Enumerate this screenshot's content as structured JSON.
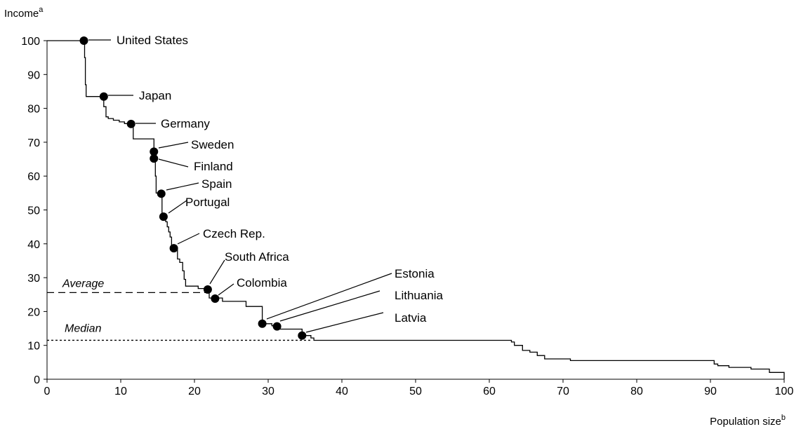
{
  "chart_data": {
    "type": "line",
    "title": "",
    "ylabel": "Income",
    "ylabel_sup": "a",
    "xlabel": "Population size",
    "xlabel_sup": "b",
    "xlim": [
      0,
      100
    ],
    "ylim": [
      0,
      100
    ],
    "xticks": [
      0,
      10,
      20,
      30,
      40,
      50,
      60,
      70,
      80,
      90,
      100
    ],
    "yticks": [
      0,
      10,
      20,
      30,
      40,
      50,
      60,
      70,
      80,
      90,
      100
    ],
    "grid": false,
    "series": [
      {
        "step": [
          [
            0,
            100
          ],
          [
            5.1,
            100
          ],
          [
            5.1,
            95
          ],
          [
            5.2,
            95
          ],
          [
            5.2,
            87
          ],
          [
            5.3,
            87
          ],
          [
            5.3,
            83.5
          ],
          [
            7.7,
            83.5
          ],
          [
            7.7,
            80.5
          ],
          [
            8.0,
            80.5
          ],
          [
            8.0,
            77.5
          ],
          [
            8.3,
            77.5
          ],
          [
            8.3,
            77
          ],
          [
            9.0,
            77
          ],
          [
            9.0,
            76.5
          ],
          [
            9.8,
            76.5
          ],
          [
            9.8,
            76
          ],
          [
            10.5,
            76
          ],
          [
            10.5,
            75.5
          ],
          [
            11.0,
            75.5
          ],
          [
            11.0,
            75.3
          ],
          [
            11.7,
            75.3
          ],
          [
            11.7,
            71
          ],
          [
            14.5,
            71
          ],
          [
            14.5,
            67.2
          ],
          [
            14.6,
            67.2
          ],
          [
            14.6,
            65.2
          ],
          [
            14.7,
            65.2
          ],
          [
            14.7,
            60
          ],
          [
            14.8,
            60
          ],
          [
            14.8,
            55
          ],
          [
            15.6,
            55
          ],
          [
            15.6,
            48
          ],
          [
            16.1,
            48
          ],
          [
            16.1,
            46.5
          ],
          [
            16.3,
            46.5
          ],
          [
            16.3,
            45
          ],
          [
            16.5,
            45
          ],
          [
            16.5,
            43.5
          ],
          [
            16.7,
            43.5
          ],
          [
            16.7,
            42
          ],
          [
            16.9,
            42
          ],
          [
            16.9,
            38.5
          ],
          [
            17.7,
            38.5
          ],
          [
            17.7,
            35.5
          ],
          [
            18.0,
            35.5
          ],
          [
            18.0,
            34.5
          ],
          [
            18.4,
            34.5
          ],
          [
            18.4,
            32
          ],
          [
            18.6,
            32
          ],
          [
            18.6,
            29.5
          ],
          [
            18.8,
            29.5
          ],
          [
            18.8,
            27.5
          ],
          [
            20.5,
            27.5
          ],
          [
            20.5,
            26.8
          ],
          [
            21.8,
            26.8
          ],
          [
            21.8,
            26.3
          ],
          [
            22.0,
            26.3
          ],
          [
            22.0,
            24
          ],
          [
            23.8,
            24
          ],
          [
            23.8,
            23
          ],
          [
            27,
            23
          ],
          [
            27,
            21.5
          ],
          [
            29.2,
            21.5
          ],
          [
            29.2,
            16.4
          ],
          [
            30.5,
            16.4
          ],
          [
            30.5,
            15.8
          ],
          [
            31.3,
            15.8
          ],
          [
            31.3,
            14.8
          ],
          [
            34.6,
            14.8
          ],
          [
            34.6,
            12.9
          ],
          [
            35.8,
            12.9
          ],
          [
            35.8,
            12.2
          ],
          [
            36.2,
            12.2
          ],
          [
            36.2,
            11.5
          ],
          [
            63.0,
            11.5
          ],
          [
            63.0,
            11
          ],
          [
            63.4,
            11
          ],
          [
            63.4,
            10
          ],
          [
            64.5,
            10
          ],
          [
            64.5,
            8.5
          ],
          [
            65.5,
            8.5
          ],
          [
            65.5,
            8
          ],
          [
            66.5,
            8
          ],
          [
            66.5,
            7
          ],
          [
            67.5,
            7
          ],
          [
            67.5,
            6
          ],
          [
            71,
            6
          ],
          [
            71,
            5.5
          ],
          [
            90.5,
            5.5
          ],
          [
            90.5,
            4.5
          ],
          [
            91,
            4.5
          ],
          [
            91,
            4
          ],
          [
            92.5,
            4
          ],
          [
            92.5,
            3.5
          ],
          [
            95.5,
            3.5
          ],
          [
            95.5,
            3
          ],
          [
            98,
            3
          ],
          [
            98,
            2
          ],
          [
            100,
            2
          ],
          [
            100,
            0
          ]
        ]
      }
    ],
    "points": [
      {
        "label": "United States",
        "x": 5.0,
        "y": 100
      },
      {
        "label": "Japan",
        "x": 7.7,
        "y": 83.5
      },
      {
        "label": "Germany",
        "x": 11.4,
        "y": 75.4
      },
      {
        "label": "Sweden",
        "x": 14.5,
        "y": 67.2
      },
      {
        "label": "Finland",
        "x": 14.5,
        "y": 65.2
      },
      {
        "label": "Spain",
        "x": 15.5,
        "y": 54.8
      },
      {
        "label": "Portugal",
        "x": 15.8,
        "y": 48.0
      },
      {
        "label": "Czech Rep.",
        "x": 17.2,
        "y": 38.7
      },
      {
        "label": "South Africa",
        "x": 21.8,
        "y": 26.5
      },
      {
        "label": "Colombia",
        "x": 22.8,
        "y": 23.8
      },
      {
        "label": "Estonia",
        "x": 29.2,
        "y": 16.4
      },
      {
        "label": "Lithuania",
        "x": 31.2,
        "y": 15.6
      },
      {
        "label": "Latvia",
        "x": 34.6,
        "y": 12.9
      }
    ],
    "reference_lines": [
      {
        "label": "Average",
        "y": 25.6,
        "x_end": 22,
        "style": "dashed"
      },
      {
        "label": "Median",
        "y": 11.5,
        "x_end": 36,
        "style": "dotted"
      }
    ]
  }
}
